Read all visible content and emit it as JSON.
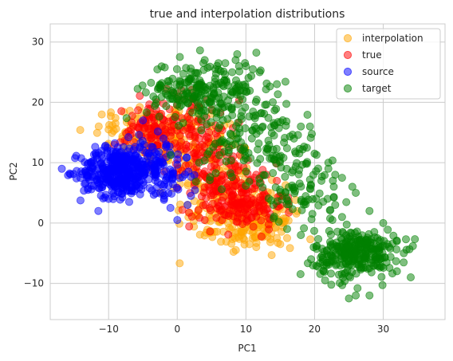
{
  "chart_data": {
    "type": "scatter",
    "title": "true and interpolation distributions",
    "xlabel": "PC1",
    "ylabel": "PC2",
    "xlim": [
      -18.5,
      39
    ],
    "ylim": [
      -16,
      33
    ],
    "xticks": [
      -10,
      0,
      10,
      20,
      30
    ],
    "yticks": [
      -10,
      0,
      10,
      20,
      30
    ],
    "xtick_labels": [
      "−10",
      "0",
      "10",
      "20",
      "30"
    ],
    "ytick_labels": [
      "−10",
      "0",
      "10",
      "20",
      "30"
    ],
    "grid": true,
    "legend_position": "top-right",
    "point_alpha": 0.5,
    "series": [
      {
        "name": "interpolation",
        "color": "#FFA500",
        "clusters": [
          {
            "center": [
              -5,
              15
            ],
            "spread": [
              3.5,
              2.5
            ],
            "count": 70
          },
          {
            "center": [
              0,
              14
            ],
            "spread": [
              3.5,
              3
            ],
            "count": 90
          },
          {
            "center": [
              5,
              8
            ],
            "spread": [
              3,
              3.5
            ],
            "count": 90
          },
          {
            "center": [
              9,
              2
            ],
            "spread": [
              3.5,
              2.2
            ],
            "count": 130
          },
          {
            "center": [
              11,
              -1
            ],
            "spread": [
              3,
              1.5
            ],
            "count": 90
          }
        ],
        "points": [
          [
            -11,
            18
          ],
          [
            -10,
            15.5
          ],
          [
            -9,
            16.5
          ],
          [
            -8,
            14
          ],
          [
            -1,
            15
          ],
          [
            11.5,
            -4
          ],
          [
            12.5,
            -2
          ],
          [
            14.5,
            -2.5
          ],
          [
            15,
            -3.5
          ],
          [
            5,
            -1.5
          ],
          [
            16,
            -2.5
          ],
          [
            10.5,
            -3.5
          ]
        ]
      },
      {
        "name": "true",
        "color": "#FF0000",
        "clusters": [
          {
            "center": [
              -4,
              15
            ],
            "spread": [
              2.5,
              2
            ],
            "count": 60
          },
          {
            "center": [
              0,
              17
            ],
            "spread": [
              3,
              2.5
            ],
            "count": 80
          },
          {
            "center": [
              3,
              11
            ],
            "spread": [
              2.5,
              3
            ],
            "count": 80
          },
          {
            "center": [
              7,
              7
            ],
            "spread": [
              3,
              2.5
            ],
            "count": 80
          },
          {
            "center": [
              9.5,
              3
            ],
            "spread": [
              3,
              2
            ],
            "count": 140
          }
        ],
        "points": [
          [
            -3,
            20
          ],
          [
            -0.5,
            21.5
          ],
          [
            1,
            20.5
          ],
          [
            13,
            8
          ],
          [
            14.5,
            7
          ],
          [
            15,
            4.5
          ],
          [
            4,
            0.5
          ],
          [
            6.5,
            0.5
          ],
          [
            11.5,
            8
          ],
          [
            13.5,
            1.5
          ]
        ]
      },
      {
        "name": "source",
        "color": "#0000FF",
        "clusters": [
          {
            "center": [
              -9,
              8.5
            ],
            "spread": [
              2.5,
              2
            ],
            "count": 320
          },
          {
            "center": [
              -5,
              10
            ],
            "spread": [
              2,
              2
            ],
            "count": 100
          },
          {
            "center": [
              -2,
              8
            ],
            "spread": [
              2,
              2
            ],
            "count": 70
          }
        ],
        "points": [
          [
            -13.5,
            6.5
          ],
          [
            -13,
            5.5
          ],
          [
            -11.5,
            2
          ],
          [
            -10,
            4
          ],
          [
            -7,
            3.5
          ],
          [
            0,
            0.5
          ],
          [
            1.5,
            3
          ],
          [
            -1,
            2.5
          ],
          [
            -2,
            14
          ],
          [
            0,
            10.5
          ],
          [
            -5,
            17
          ],
          [
            2,
            4.5
          ]
        ]
      },
      {
        "name": "target",
        "color": "#008000",
        "clusters": [
          {
            "center": [
              1.5,
              22
            ],
            "spread": [
              3,
              2.5
            ],
            "count": 140
          },
          {
            "center": [
              7,
              22
            ],
            "spread": [
              3,
              2.5
            ],
            "count": 60
          },
          {
            "center": [
              10,
              18
            ],
            "spread": [
              3.5,
              3
            ],
            "count": 70
          },
          {
            "center": [
              8,
              12
            ],
            "spread": [
              3,
              3
            ],
            "count": 50
          },
          {
            "center": [
              15,
              13
            ],
            "spread": [
              3,
              3
            ],
            "count": 60
          },
          {
            "center": [
              18,
              5
            ],
            "spread": [
              3,
              2.5
            ],
            "count": 70
          },
          {
            "center": [
              26,
              -5
            ],
            "spread": [
              3,
              2
            ],
            "count": 300
          }
        ],
        "points": [
          [
            4,
            27
          ],
          [
            6,
            26.5
          ],
          [
            7,
            26.5
          ],
          [
            8.5,
            27
          ],
          [
            9,
            26
          ],
          [
            10,
            26
          ],
          [
            8,
            25
          ],
          [
            11,
            25.5
          ],
          [
            12,
            25
          ],
          [
            22,
            9
          ],
          [
            23,
            8
          ],
          [
            24,
            7.5
          ],
          [
            25.5,
            6
          ],
          [
            26,
            5
          ],
          [
            28,
            2
          ],
          [
            30,
            0
          ],
          [
            32,
            -3
          ],
          [
            33,
            -5
          ],
          [
            34,
            -9
          ],
          [
            32,
            -8
          ],
          [
            29.5,
            -6
          ],
          [
            19.5,
            -6
          ],
          [
            18,
            -2
          ],
          [
            16,
            -1
          ],
          [
            14,
            3
          ],
          [
            18,
            16
          ],
          [
            17,
            14
          ],
          [
            20,
            11.5
          ],
          [
            22,
            10
          ],
          [
            21,
            7
          ],
          [
            23,
            3
          ],
          [
            24,
            1
          ],
          [
            26,
            -12
          ],
          [
            25,
            -12.5
          ],
          [
            28,
            -12
          ]
        ]
      }
    ]
  }
}
